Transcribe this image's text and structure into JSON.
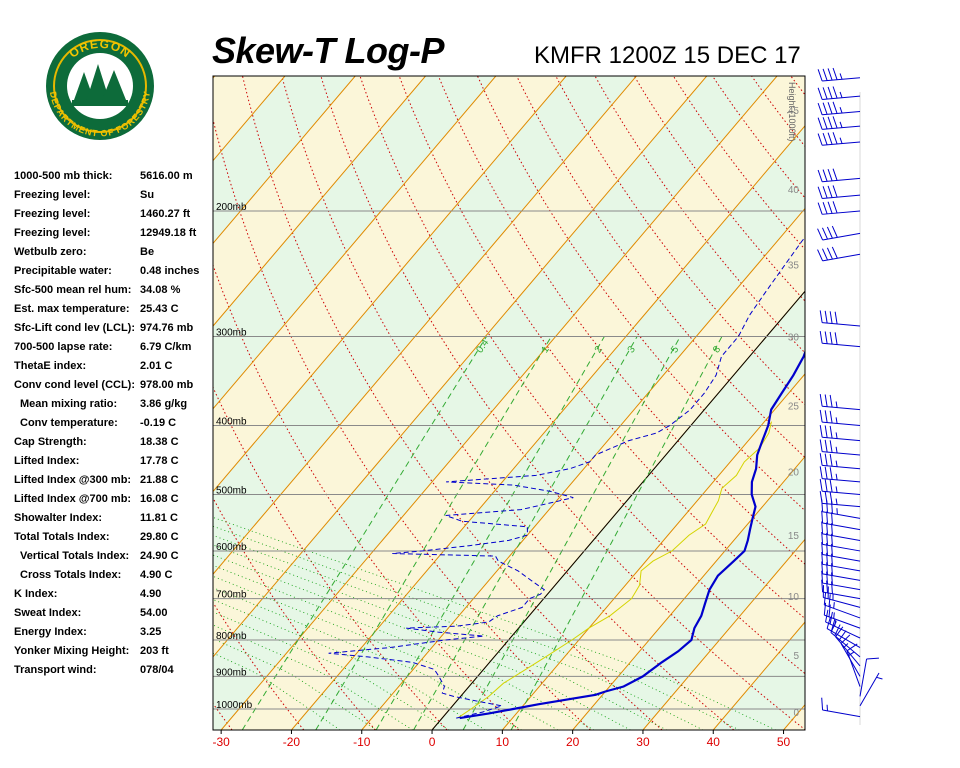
{
  "header": {
    "title": "Skew-T Log-P",
    "subtitle": "KMFR 1200Z 15 DEC 17",
    "logo_top_text": "OREGON",
    "logo_bottom_text": "DEPARTMENT OF FORESTRY"
  },
  "indices": [
    {
      "label": "1000-500 mb thick:",
      "value": "5616.00 m"
    },
    {
      "label": "Freezing level:",
      "value": "Su"
    },
    {
      "label": "Freezing level:",
      "value": "1460.27 ft"
    },
    {
      "label": "Freezing level:",
      "value": "12949.18 ft"
    },
    {
      "label": "Wetbulb zero:",
      "value": "Be"
    },
    {
      "label": "Precipitable water:",
      "value": "0.48 inches"
    },
    {
      "label": "Sfc-500 mean rel hum:",
      "value": "34.08 %"
    },
    {
      "label": "Est. max temperature:",
      "value": "25.43 C"
    },
    {
      "label": "Sfc-Lift cond lev (LCL):",
      "value": "974.76 mb"
    },
    {
      "label": "700-500 lapse rate:",
      "value": "6.79 C/km"
    },
    {
      "label": "ThetaE index:",
      "value": "2.01 C"
    },
    {
      "label": "Conv cond level (CCL):",
      "value": "978.00 mb"
    },
    {
      "label": "Mean mixing ratio:",
      "value": "3.86 g/kg",
      "indent": true
    },
    {
      "label": "Conv temperature:",
      "value": "-0.19 C",
      "indent": true
    },
    {
      "label": "Cap Strength:",
      "value": "18.38 C"
    },
    {
      "label": "Lifted Index:",
      "value": "17.78 C"
    },
    {
      "label": "Lifted Index @300 mb:",
      "value": "21.88 C"
    },
    {
      "label": "Lifted Index @700 mb:",
      "value": "16.08 C"
    },
    {
      "label": "Showalter Index:",
      "value": "11.81 C"
    },
    {
      "label": "Total Totals Index:",
      "value": "29.80 C"
    },
    {
      "label": "Vertical Totals Index:",
      "value": "24.90 C",
      "indent": true
    },
    {
      "label": "Cross Totals Index:",
      "value": "4.90 C",
      "indent": true
    },
    {
      "label": "K Index:",
      "value": "4.90"
    },
    {
      "label": "Sweat Index:",
      "value": "54.00"
    },
    {
      "label": "Energy Index:",
      "value": "3.25"
    },
    {
      "label": "Yonker Mixing Height:",
      "value": "203 ft"
    },
    {
      "label": "Transport wind:",
      "value": "078/04"
    }
  ],
  "chart_data": {
    "type": "line",
    "title": "Skew-T Log-P",
    "x_ticks": [
      -30,
      -20,
      -10,
      0,
      10,
      20,
      30,
      40,
      50
    ],
    "pressure_levels": [
      {
        "p": 200,
        "label": "200mb"
      },
      {
        "p": 300,
        "label": "300mb"
      },
      {
        "p": 400,
        "label": "400mb"
      },
      {
        "p": 500,
        "label": "500mb"
      },
      {
        "p": 600,
        "label": "600mb"
      },
      {
        "p": 700,
        "label": "700mb"
      },
      {
        "p": 800,
        "label": "800mb"
      },
      {
        "p": 900,
        "label": "900mb"
      },
      {
        "p": 1000,
        "label": "1000mb"
      }
    ],
    "height_axis": {
      "label": "Height (1000ft)",
      "ticks": [
        0,
        5,
        10,
        15,
        20,
        25,
        30,
        35,
        40,
        45,
        50
      ]
    },
    "mixing_ratio_labels": [
      "0.4",
      "1",
      "2",
      "3",
      "5",
      "8"
    ],
    "colors": {
      "temperature": "#0000cc",
      "dewpoint": "#0000cc",
      "wetbulb": "#d4d400",
      "isotherm": "#e08a00",
      "dry_adiabat": "#cc0000",
      "moist_adiabat": "#009900",
      "mixing_ratio": "#33aa33",
      "band_green": "#e6f7e6",
      "band_yellow": "#fbf6d9",
      "tick_label": "#dd0000"
    },
    "series": [
      {
        "key": "temperature",
        "points": [
          [
            1030,
            2.5
          ],
          [
            1015,
            6
          ],
          [
            1000,
            9
          ],
          [
            985,
            12
          ],
          [
            970,
            15.5
          ],
          [
            955,
            19
          ],
          [
            945,
            20
          ],
          [
            930,
            22
          ],
          [
            900,
            23.5
          ],
          [
            860,
            24.5
          ],
          [
            830,
            25.5
          ],
          [
            800,
            26
          ],
          [
            770,
            25
          ],
          [
            740,
            24.5
          ],
          [
            710,
            23.5
          ],
          [
            680,
            22.5
          ],
          [
            650,
            22
          ],
          [
            620,
            22.5
          ],
          [
            600,
            22.8
          ],
          [
            580,
            22
          ],
          [
            560,
            21
          ],
          [
            540,
            20
          ],
          [
            520,
            19
          ],
          [
            500,
            17
          ],
          [
            480,
            15.5
          ],
          [
            460,
            14.5
          ],
          [
            440,
            13
          ],
          [
            420,
            12
          ],
          [
            400,
            11
          ],
          [
            380,
            9.5
          ],
          [
            360,
            9
          ],
          [
            340,
            8.5
          ],
          [
            320,
            7.7
          ],
          [
            300,
            6.3
          ],
          [
            280,
            4.6
          ],
          [
            260,
            3
          ],
          [
            240,
            1
          ],
          [
            220,
            -1
          ],
          [
            200,
            -3
          ],
          [
            175,
            -5
          ],
          [
            160,
            -6
          ],
          [
            150,
            -5.5
          ],
          [
            140,
            -3.5
          ],
          [
            130,
            1
          ],
          [
            120,
            3
          ],
          [
            110,
            6.5
          ],
          [
            100,
            10
          ],
          [
            92,
            12.5
          ]
        ]
      },
      {
        "key": "dewpoint",
        "points": [
          [
            1030,
            2
          ],
          [
            1010,
            5
          ],
          [
            990,
            7
          ],
          [
            975,
            3
          ],
          [
            960,
            -1
          ],
          [
            950,
            -3
          ],
          [
            930,
            -3.5
          ],
          [
            900,
            -5.5
          ],
          [
            880,
            -7
          ],
          [
            860,
            -11
          ],
          [
            845,
            -18
          ],
          [
            835,
            -24
          ],
          [
            820,
            -16
          ],
          [
            800,
            -9
          ],
          [
            790,
            -4
          ],
          [
            780,
            -11
          ],
          [
            770,
            -16
          ],
          [
            765,
            -9
          ],
          [
            755,
            -5
          ],
          [
            740,
            -4.5
          ],
          [
            720,
            -2
          ],
          [
            700,
            -2
          ],
          [
            690,
            -1
          ],
          [
            680,
            -1
          ],
          [
            660,
            -4
          ],
          [
            640,
            -7
          ],
          [
            620,
            -11
          ],
          [
            610,
            -12
          ],
          [
            605,
            -27
          ],
          [
            600,
            -23
          ],
          [
            590,
            -17
          ],
          [
            580,
            -12
          ],
          [
            570,
            -10
          ],
          [
            555,
            -11
          ],
          [
            545,
            -21
          ],
          [
            535,
            -24
          ],
          [
            525,
            -14
          ],
          [
            515,
            -11
          ],
          [
            505,
            -8
          ],
          [
            495,
            -12
          ],
          [
            485,
            -18
          ],
          [
            480,
            -28
          ],
          [
            470,
            -16
          ],
          [
            460,
            -12
          ],
          [
            450,
            -10
          ],
          [
            440,
            -10
          ],
          [
            420,
            -7
          ],
          [
            410,
            -4
          ],
          [
            400,
            -3
          ],
          [
            380,
            -2
          ],
          [
            360,
            -2
          ],
          [
            340,
            -2.5
          ],
          [
            320,
            -4
          ],
          [
            300,
            -4
          ],
          [
            280,
            -5
          ],
          [
            260,
            -5.5
          ],
          [
            240,
            -6
          ],
          [
            220,
            -6.5
          ],
          [
            200,
            -6.5
          ],
          [
            180,
            -7
          ],
          [
            165,
            -6.8
          ],
          [
            150,
            -5
          ],
          [
            140,
            -3
          ],
          [
            125,
            -1
          ],
          [
            100,
            0
          ],
          [
            92,
            2
          ]
        ]
      },
      {
        "key": "wetbulb",
        "points": [
          [
            1030,
            2.2
          ],
          [
            1000,
            3
          ],
          [
            960,
            4
          ],
          [
            920,
            4.5
          ],
          [
            880,
            6
          ],
          [
            840,
            7.5
          ],
          [
            800,
            9
          ],
          [
            770,
            10
          ],
          [
            740,
            11.5
          ],
          [
            700,
            12.5
          ],
          [
            670,
            12
          ],
          [
            640,
            10.5
          ],
          [
            620,
            11
          ],
          [
            600,
            12.5
          ],
          [
            570,
            13
          ],
          [
            550,
            14
          ],
          [
            530,
            13.5
          ],
          [
            510,
            13
          ],
          [
            490,
            12
          ],
          [
            470,
            12.5
          ],
          [
            450,
            12
          ],
          [
            430,
            12.5
          ],
          [
            410,
            12
          ],
          [
            395,
            11
          ]
        ]
      }
    ],
    "wind_barbs": [
      {
        "p": 1025,
        "dir": 280,
        "speed": 15
      },
      {
        "p": 990,
        "dir": 30,
        "speed": 5
      },
      {
        "p": 960,
        "dir": 10,
        "speed": 10
      },
      {
        "p": 930,
        "dir": 340,
        "speed": 15
      },
      {
        "p": 900,
        "dir": 330,
        "speed": 15
      },
      {
        "p": 870,
        "dir": 320,
        "speed": 20
      },
      {
        "p": 845,
        "dir": 310,
        "speed": 20
      },
      {
        "p": 820,
        "dir": 300,
        "speed": 20
      },
      {
        "p": 795,
        "dir": 295,
        "speed": 25
      },
      {
        "p": 770,
        "dir": 290,
        "speed": 25
      },
      {
        "p": 745,
        "dir": 290,
        "speed": 25
      },
      {
        "p": 720,
        "dir": 285,
        "speed": 25
      },
      {
        "p": 700,
        "dir": 280,
        "speed": 30
      },
      {
        "p": 680,
        "dir": 280,
        "speed": 30
      },
      {
        "p": 660,
        "dir": 280,
        "speed": 30
      },
      {
        "p": 640,
        "dir": 280,
        "speed": 30
      },
      {
        "p": 620,
        "dir": 280,
        "speed": 30
      },
      {
        "p": 600,
        "dir": 280,
        "speed": 30
      },
      {
        "p": 580,
        "dir": 280,
        "speed": 30
      },
      {
        "p": 560,
        "dir": 280,
        "speed": 30
      },
      {
        "p": 540,
        "dir": 280,
        "speed": 35
      },
      {
        "p": 520,
        "dir": 275,
        "speed": 35
      },
      {
        "p": 500,
        "dir": 275,
        "speed": 35
      },
      {
        "p": 480,
        "dir": 275,
        "speed": 35
      },
      {
        "p": 460,
        "dir": 275,
        "speed": 35
      },
      {
        "p": 440,
        "dir": 275,
        "speed": 35
      },
      {
        "p": 420,
        "dir": 275,
        "speed": 35
      },
      {
        "p": 400,
        "dir": 275,
        "speed": 35
      },
      {
        "p": 380,
        "dir": 275,
        "speed": 35
      },
      {
        "p": 310,
        "dir": 275,
        "speed": 40
      },
      {
        "p": 290,
        "dir": 275,
        "speed": 40
      },
      {
        "p": 230,
        "dir": 260,
        "speed": 40
      },
      {
        "p": 215,
        "dir": 260,
        "speed": 40
      },
      {
        "p": 200,
        "dir": 265,
        "speed": 40
      },
      {
        "p": 190,
        "dir": 265,
        "speed": 40
      },
      {
        "p": 180,
        "dir": 265,
        "speed": 40
      },
      {
        "p": 160,
        "dir": 265,
        "speed": 45
      },
      {
        "p": 152,
        "dir": 265,
        "speed": 45
      },
      {
        "p": 145,
        "dir": 265,
        "speed": 45
      },
      {
        "p": 138,
        "dir": 265,
        "speed": 45
      },
      {
        "p": 130,
        "dir": 265,
        "speed": 45
      },
      {
        "p": 118,
        "dir": 275,
        "speed": 40
      },
      {
        "p": 108,
        "dir": 275,
        "speed": 40
      }
    ]
  }
}
